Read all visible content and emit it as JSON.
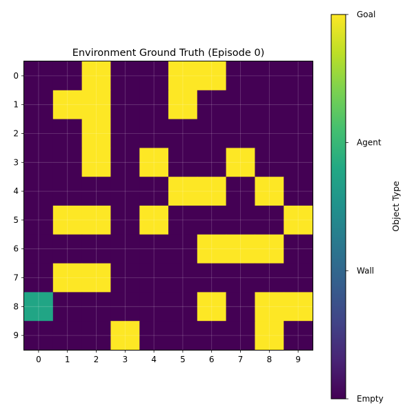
{
  "chart_data": {
    "type": "heatmap",
    "title": "Environment Ground Truth (Episode 0)",
    "xlabel": "",
    "ylabel": "",
    "x_ticks": [
      "0",
      "1",
      "2",
      "3",
      "4",
      "5",
      "6",
      "7",
      "8",
      "9"
    ],
    "y_ticks": [
      "0",
      "1",
      "2",
      "3",
      "4",
      "5",
      "6",
      "7",
      "8",
      "9"
    ],
    "grid": true,
    "colormap": "viridis",
    "colorbar": {
      "label": "Object Type",
      "ticks": [
        "Empty",
        "Wall",
        "Agent",
        "Goal"
      ],
      "range": [
        0,
        3
      ]
    },
    "categories": [
      "Empty",
      "Wall",
      "Agent",
      "Goal"
    ],
    "category_colors": [
      "#440154",
      "#31688e",
      "#21a585",
      "#fde725"
    ],
    "values": [
      [
        0,
        0,
        3,
        0,
        0,
        3,
        3,
        0,
        0,
        0
      ],
      [
        0,
        3,
        3,
        0,
        0,
        3,
        0,
        0,
        0,
        0
      ],
      [
        0,
        0,
        3,
        0,
        0,
        0,
        0,
        0,
        0,
        0
      ],
      [
        0,
        0,
        3,
        0,
        3,
        0,
        0,
        3,
        0,
        0
      ],
      [
        0,
        0,
        0,
        0,
        0,
        3,
        3,
        0,
        3,
        0
      ],
      [
        0,
        3,
        3,
        0,
        3,
        0,
        0,
        0,
        0,
        3
      ],
      [
        0,
        0,
        0,
        0,
        0,
        0,
        3,
        3,
        3,
        0
      ],
      [
        0,
        3,
        3,
        0,
        0,
        0,
        0,
        0,
        0,
        0
      ],
      [
        2,
        0,
        0,
        0,
        0,
        0,
        3,
        0,
        3,
        3
      ],
      [
        0,
        0,
        0,
        3,
        0,
        0,
        0,
        0,
        3,
        0
      ]
    ]
  }
}
